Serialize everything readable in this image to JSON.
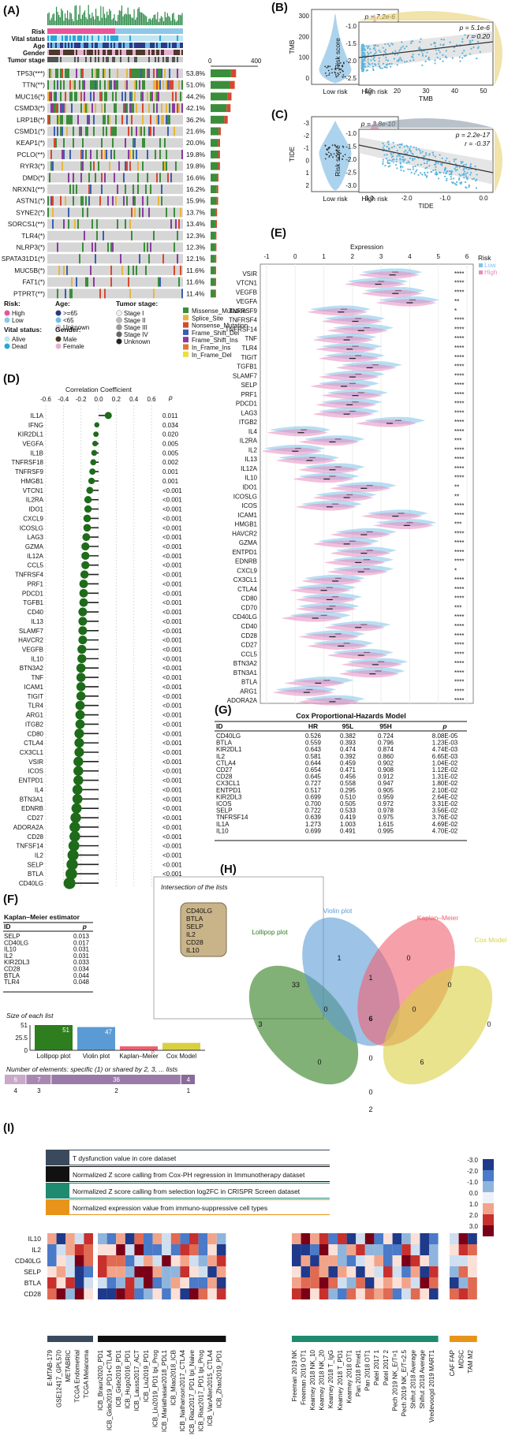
{
  "panel_letters": {
    "A": "(A)",
    "B": "(B)",
    "C": "(C)",
    "D": "(D)",
    "E": "(E)",
    "F": "(F)",
    "G": "(G)",
    "H": "(H)",
    "I": "(I)"
  },
  "panelA": {
    "track_labels": [
      "Risk",
      "Vital status",
      "Age",
      "Gender",
      "Tumor stage"
    ],
    "genes": [
      "TP53(***)",
      "TTN(**)",
      "MUC16(*)",
      "CSMD3(*)",
      "LRP1B(*)",
      "CSMD1(*)",
      "KEAP1(*)",
      "PCLO(**)",
      "RYR3(*)",
      "DMD(*)",
      "NRXN1(**)",
      "ASTN1(*)",
      "SYNE2(*)",
      "SORCS1(**)",
      "TLR4(*)",
      "NLRP3(*)",
      "SPATA31D1(*)",
      "MUC5B(*)",
      "FAT1(*)",
      "PTPRT(**)"
    ],
    "percents": [
      "53.8%",
      "51.0%",
      "44.2%",
      "42.1%",
      "36.2%",
      "21.6%",
      "20.0%",
      "19.8%",
      "19.8%",
      "16.6%",
      "16.2%",
      "15.9%",
      "13.7%",
      "13.4%",
      "12.3%",
      "12.3%",
      "12.1%",
      "11.6%",
      "11.6%",
      "11.4%"
    ],
    "count_axis": [
      "0",
      "400"
    ],
    "legend": {
      "risk_title": "Risk:",
      "risk": [
        "High",
        "Low"
      ],
      "age_title": "Age:",
      "age": [
        ">=65",
        "<65",
        "Unknown"
      ],
      "stage_title": "Tumor stage:",
      "stage": [
        "Stage I",
        "Stage II",
        "Stage III",
        "Stage IV",
        "Unknown"
      ],
      "vital_title": "Vital status:",
      "vital": [
        "Alive",
        "Dead"
      ],
      "gender_title": "Gender:",
      "gender": [
        "Male",
        "Female"
      ],
      "mutation": [
        "Missense_Mutation",
        "Splice_Site",
        "Nonsense_Mutation",
        "Frame_Shift_Del",
        "Frame_Shift_Ins",
        "In_Frame_Ins",
        "In_Frame_Del"
      ]
    },
    "colors": {
      "high": "#e8559a",
      "low": "#8dc8e8",
      "missense": "#3a8d3a",
      "splice": "#e8b63a",
      "nonsense": "#d9482e",
      "fsdel": "#3a5fb0",
      "fsins": "#8a3aa0",
      "ifins": "#e07a2a",
      "ifdel": "#e8e03a"
    }
  },
  "panelB": {
    "violin_p": "p = 7.2e-6",
    "violin_ylabel": "TMB",
    "violin_groups": [
      "Low risk",
      "High risk"
    ],
    "violin_yticks": [
      "0",
      "100",
      "200",
      "300"
    ],
    "scatter_stats": [
      "p = 5.1e-6",
      "r = 0.20"
    ],
    "scatter_xlabel": "TMB",
    "scatter_ylabel": "Risk score",
    "scatter_xticks": [
      "10",
      "20",
      "30",
      "40",
      "50"
    ],
    "scatter_yticks": [
      "-1.0",
      "-1.5",
      "-2.0",
      "-2.5"
    ]
  },
  "panelC": {
    "violin_p": "p = 3.8e-10",
    "violin_ylabel": "TIDE",
    "violin_groups": [
      "Low risk",
      "High risk"
    ],
    "violin_yticks": [
      "2",
      "1",
      "0",
      "-1",
      "-2",
      "-3"
    ],
    "scatter_stats": [
      "p = 2.2e-17",
      "r = -0.37"
    ],
    "scatter_xlabel": "TIDE",
    "scatter_ylabel": "Risk score",
    "scatter_xticks": [
      "-3.0",
      "-2.0",
      "-1.0",
      "0.0"
    ],
    "scatter_yticks": [
      "-1.0",
      "-1.5",
      "-2.0",
      "-2.5",
      "-3.0"
    ]
  },
  "chart_data": [
    {
      "type": "scatter",
      "title": "Correlation Coefficient",
      "p_header": "p",
      "xticks": [
        "-0.6",
        "-0.4",
        "-0.2",
        "0.0",
        "0.2",
        "0.4",
        "0.6"
      ],
      "xlim": [
        -0.6,
        0.6
      ],
      "categories": [
        "IL1A",
        "IFNG",
        "KIR2DL1",
        "VEGFA",
        "IL1B",
        "TNFRSF18",
        "TNFRSF9",
        "HMGB1",
        "VTCN1",
        "IL2RA",
        "IDO1",
        "CXCL9",
        "ICOSLG",
        "LAG3",
        "GZMA",
        "IL12A",
        "CCL5",
        "TNFRSF4",
        "PRF1",
        "PDCD1",
        "TGFB1",
        "CD40",
        "IL13",
        "SLAMF7",
        "HAVCR2",
        "VEGFB",
        "IL10",
        "BTN3A2",
        "TNF",
        "ICAM1",
        "TIGIT",
        "TLR4",
        "ARG1",
        "ITGB2",
        "CD80",
        "CTLA4",
        "CX3CL1",
        "VSIR",
        "ICOS",
        "ENTPD1",
        "IL4",
        "BTN3A1",
        "EDNRB",
        "CD27",
        "ADORA2A",
        "CD28",
        "TNFSF14",
        "IL2",
        "SELP",
        "BTLA",
        "CD40LG"
      ],
      "values": [
        0.11,
        -0.02,
        -0.03,
        -0.04,
        -0.05,
        -0.06,
        -0.07,
        -0.08,
        -0.1,
        -0.12,
        -0.12,
        -0.13,
        -0.13,
        -0.14,
        -0.15,
        -0.15,
        -0.15,
        -0.16,
        -0.17,
        -0.17,
        -0.17,
        -0.18,
        -0.18,
        -0.18,
        -0.18,
        -0.19,
        -0.19,
        -0.2,
        -0.2,
        -0.2,
        -0.2,
        -0.21,
        -0.21,
        -0.21,
        -0.22,
        -0.22,
        -0.22,
        -0.23,
        -0.23,
        -0.23,
        -0.24,
        -0.24,
        -0.25,
        -0.26,
        -0.27,
        -0.27,
        -0.28,
        -0.29,
        -0.3,
        -0.31,
        -0.33
      ],
      "p_values": [
        "0.011",
        "0.034",
        "0.020",
        "0.005",
        "0.005",
        "0.002",
        "0.001",
        "0.001",
        "<0.001",
        "<0.001",
        "<0.001",
        "<0.001",
        "<0.001",
        "<0.001",
        "<0.001",
        "<0.001",
        "<0.001",
        "<0.001",
        "<0.001",
        "<0.001",
        "<0.001",
        "<0.001",
        "<0.001",
        "<0.001",
        "<0.001",
        "<0.001",
        "<0.001",
        "<0.001",
        "<0.001",
        "<0.001",
        "<0.001",
        "<0.001",
        "<0.001",
        "<0.001",
        "<0.001",
        "<0.001",
        "<0.001",
        "<0.001",
        "<0.001",
        "<0.001",
        "<0.001",
        "<0.001",
        "<0.001",
        "<0.001",
        "<0.001",
        "<0.001",
        "<0.001",
        "<0.001",
        "<0.001",
        "<0.001",
        "<0.001"
      ]
    },
    {
      "type": "violin",
      "title": "Expression",
      "xticks": [
        "-1",
        "0",
        "1",
        "2",
        "3",
        "4",
        "5",
        "6"
      ],
      "xlim": [
        -1,
        6
      ],
      "legend_title": "Risk",
      "series": [
        {
          "name": "Low",
          "color": "#7ec4e8"
        },
        {
          "name": "High",
          "color": "#e88cc0"
        }
      ],
      "categories": [
        "VSIR",
        "VTCN1",
        "VEGFB",
        "VEGFA",
        "TNFRSF9",
        "TNFRSF4",
        "TNFRSF14",
        "TNF",
        "TLR4",
        "TIGIT",
        "TGFB1",
        "SLAMF7",
        "SELP",
        "PRF1",
        "PDCD1",
        "LAG3",
        "ITGB2",
        "IL4",
        "IL2RA",
        "IL2",
        "IL13",
        "IL12A",
        "IL10",
        "IDO1",
        "ICOSLG",
        "ICOS",
        "ICAM1",
        "HMGB1",
        "HAVCR2",
        "GZMA",
        "ENTPD1",
        "EDNRB",
        "CXCL9",
        "CX3CL1",
        "CTLA4",
        "CD80",
        "CD70",
        "CD40LG",
        "CD40",
        "CD28",
        "CD27",
        "CCL5",
        "BTN3A2",
        "BTN3A1",
        "BTLA",
        "ARG1",
        "ADORA2A"
      ],
      "low_median": [
        3.5,
        3.0,
        3.6,
        4.1,
        1.7,
        2.2,
        2.5,
        1.9,
        2.1,
        2.2,
        2.8,
        2.2,
        2.0,
        2.3,
        2.1,
        2.0,
        3.6,
        0.3,
        1.5,
        0.1,
        0.6,
        1.5,
        1.3,
        2.6,
        1.9,
        1.4,
        3.7,
        4.0,
        2.6,
        2.0,
        2.6,
        2.5,
        2.5,
        1.5,
        1.2,
        1.4,
        1.3,
        1.0,
        2.4,
        1.5,
        1.8,
        2.5,
        3.0,
        2.9,
        1.1,
        0.5,
        1.5
      ],
      "high_median": [
        3.4,
        2.9,
        3.5,
        4.0,
        1.6,
        2.1,
        2.3,
        1.8,
        1.9,
        2.0,
        2.6,
        2.0,
        1.7,
        2.1,
        1.9,
        1.8,
        3.3,
        0.2,
        1.3,
        0.0,
        0.5,
        1.3,
        1.1,
        2.4,
        1.8,
        1.2,
        3.5,
        3.9,
        2.4,
        1.8,
        2.4,
        2.2,
        2.3,
        1.4,
        1.0,
        1.2,
        1.2,
        0.7,
        2.2,
        1.3,
        1.6,
        2.3,
        2.8,
        2.7,
        0.8,
        0.4,
        1.3
      ],
      "significance": [
        "****",
        "****",
        "****",
        "**",
        "*",
        "****",
        "****",
        "****",
        "****",
        "****",
        "****",
        "****",
        "****",
        "****",
        "****",
        "****",
        "****",
        "****",
        "***",
        "****",
        "****",
        "****",
        "****",
        "**",
        "**",
        "****",
        "****",
        "***",
        "****",
        "****",
        "****",
        "****",
        "*",
        "****",
        "****",
        "****",
        "***",
        "****",
        "****",
        "****",
        "****",
        "****",
        "****",
        "****",
        "****",
        "****",
        "****"
      ]
    },
    {
      "type": "table",
      "title": "Cox Proportional-Hazards Model",
      "columns": [
        "ID",
        "HR",
        "95L",
        "95H",
        "p"
      ],
      "rows": [
        [
          "CD40LG",
          "0.526",
          "0.382",
          "0.724",
          "8.08E-05"
        ],
        [
          "BTLA",
          "0.559",
          "0.393",
          "0.796",
          "1.23E-03"
        ],
        [
          "KIR2DL1",
          "0.643",
          "0.474",
          "0.874",
          "4.74E-03"
        ],
        [
          "IL2",
          "0.581",
          "0.392",
          "0.860",
          "6.65E-03"
        ],
        [
          "CTLA4",
          "0.644",
          "0.459",
          "0.902",
          "1.04E-02"
        ],
        [
          "CD27",
          "0.654",
          "0.471",
          "0.908",
          "1.12E-02"
        ],
        [
          "CD28",
          "0.645",
          "0.456",
          "0.912",
          "1.31E-02"
        ],
        [
          "CX3CL1",
          "0.727",
          "0.558",
          "0.947",
          "1.80E-02"
        ],
        [
          "ENTPD1",
          "0.517",
          "0.295",
          "0.905",
          "2.10E-02"
        ],
        [
          "KIR2DL3",
          "0.699",
          "0.510",
          "0.959",
          "2.64E-02"
        ],
        [
          "ICOS",
          "0.700",
          "0.505",
          "0.972",
          "3.31E-02"
        ],
        [
          "SELP",
          "0.722",
          "0.533",
          "0.978",
          "3.56E-02"
        ],
        [
          "TNFRSF14",
          "0.639",
          "0.419",
          "0.975",
          "3.76E-02"
        ],
        [
          "IL1A",
          "1.273",
          "1.003",
          "1.615",
          "4.69E-02"
        ],
        [
          "IL10",
          "0.699",
          "0.491",
          "0.995",
          "4.70E-02"
        ]
      ]
    },
    {
      "type": "table",
      "title": "Kaplan–Meier estimator",
      "columns": [
        "ID",
        "p"
      ],
      "rows": [
        [
          "SELP",
          "0.013"
        ],
        [
          "CD40LG",
          "0.017"
        ],
        [
          "IL10",
          "0.031"
        ],
        [
          "IL2",
          "0.031"
        ],
        [
          "KIR2DL3",
          "0.033"
        ],
        [
          "CD28",
          "0.034"
        ],
        [
          "BTLA",
          "0.044"
        ],
        [
          "TLR4",
          "0.048"
        ]
      ]
    },
    {
      "type": "bar",
      "title": "Size of each list",
      "categories": [
        "Lollipop plot",
        "Violin plot",
        "Kaplan–Meier",
        "Cox Model"
      ],
      "values": [
        51,
        47,
        8,
        15
      ],
      "colors": [
        "#2e7d1e",
        "#5b9bd5",
        "#f06070",
        "#d8d040"
      ],
      "yticks": [
        "51",
        "25.5",
        "0"
      ],
      "ylim": [
        0,
        51
      ]
    },
    {
      "type": "bar",
      "title": "Number of elements: specific (1) or shared by 2, 3, ... lists",
      "categories": [
        "4",
        "3",
        "2",
        "1"
      ],
      "values": [
        6,
        7,
        36,
        4
      ]
    },
    {
      "type": "heatmap",
      "rows": [
        "IL10",
        "IL2",
        "CD40LG",
        "SELP",
        "BTLA",
        "CD28"
      ],
      "scale_ticks": [
        "-3.0",
        "-2.0",
        "-1.0",
        "0.0",
        "1.0",
        "2.0",
        "3.0"
      ],
      "groups": [
        {
          "legend": "T dysfunction value in core dataset",
          "color": "#3a4a5c",
          "columns": [
            "E-MTAB-179",
            "GSE12417_GPL570",
            "METABRIC",
            "TCGA Endometrial",
            "TCGA Melanoma"
          ]
        },
        {
          "legend": "Normalized Z score calling from Cox-PH regression in Immunotherapy dataset",
          "color": "#111111",
          "columns": [
            "ICB_Braun2020_PD1",
            "ICB_Gide2019_PD1+CTLA4",
            "ICB_Gide2019_PD1",
            "ICB_Hugo2016_PD1",
            "ICB_Lauss2017_ACT",
            "ICB_Liu2019_PD1",
            "ICB_Liu2019_PD1 Ipi_Prog",
            "ICB_Mariathasan2018_PDL1",
            "ICB_Miao2018_ICB",
            "ICB_Nathanson2017_CTLA4",
            "ICB_Riaz2017_PD1 Ipi_Naive",
            "ICB_Riaz2017_PD1 Ipi_Prog",
            "ICB_VanAllen2015_CTLA4",
            "ICB_Zhao2019_PD1"
          ]
        },
        {
          "legend": "Normalized Z score calling from selection log2FC in CRISPR Screen dataset",
          "color": "#1f8a6e",
          "columns": [
            "Freeman 2019 NK",
            "Freeman 2019 OT1",
            "Kearney 2018 NK_10",
            "Kearney 2018 NK_20",
            "Kearney 2018 T_IgG",
            "Kearney 2018 T_PD1",
            "Kearney 2018 OT1",
            "Pan 2018 Pmel1",
            "Pan 2018 OT1",
            "Patel 2017 1",
            "Patel 2017 2",
            "Pech 2019 NK_E/T=1",
            "Pech 2019 NK_E/T=2.5",
            "Shifrut 2018 Average",
            "Shifrut 2018 Average",
            "Vredevoogd 2019 MART1"
          ]
        },
        {
          "legend": "Normalized expression value from immuno-suppressive cell types",
          "color": "#e8941a",
          "columns": [
            "CAF FAP",
            "MDSC",
            "TAM M2"
          ]
        }
      ]
    }
  ],
  "panelH": {
    "intersection_title": "Intersection of the lists",
    "intersection_items": [
      "CD40LG",
      "BTLA",
      "SELP",
      "IL2",
      "CD28",
      "IL10"
    ],
    "set_labels": [
      "Lollipop plot",
      "Violin plot",
      "Kaplan–Meier",
      "Cox Model"
    ],
    "region_counts": [
      "3",
      "1",
      "0",
      "0",
      "33",
      "1",
      "0",
      "0",
      "6",
      "0",
      "0",
      "0",
      "6",
      "0",
      "2"
    ],
    "colors": [
      "#2e7d1e",
      "#5b9bd5",
      "#f06070",
      "#d8d040"
    ]
  },
  "panelF_misc": {
    "num_left_labels": [
      "4",
      "3",
      "2",
      "1"
    ]
  }
}
